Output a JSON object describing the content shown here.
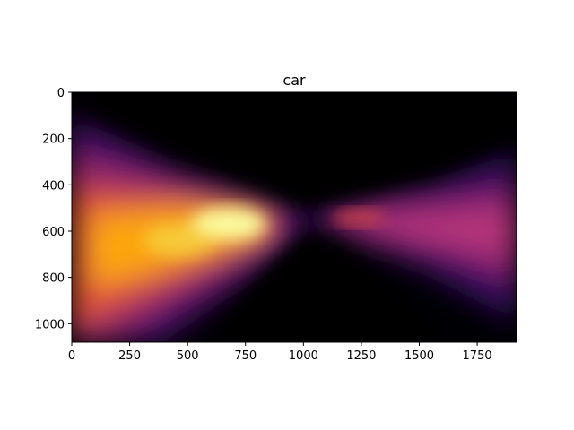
{
  "chart_data": {
    "type": "heatmap",
    "title": "car",
    "colormap": "inferno",
    "xlabel": "",
    "ylabel": "",
    "xlim": [
      0,
      1920
    ],
    "ylim": [
      1080,
      0
    ],
    "y_inverted": true,
    "xticks": [
      0,
      250,
      500,
      750,
      1000,
      1250,
      1500,
      1750
    ],
    "yticks": [
      0,
      200,
      400,
      600,
      800,
      1000
    ],
    "grid": false,
    "description_of_field": "Intensity heatmap shaped like a bow-tie converging near x≈1000, y≈560; brightest region around x≈500–800, y≈550–650; moderate intensity band on the right at x≈1150–1900, y≈480–700; dark elsewhere.",
    "hotspots": [
      {
        "x": 700,
        "y": 570,
        "intensity": 1.0
      },
      {
        "x": 450,
        "y": 640,
        "intensity": 0.85
      },
      {
        "x": 200,
        "y": 700,
        "intensity": 0.7
      },
      {
        "x": 1230,
        "y": 540,
        "intensity": 0.55
      },
      {
        "x": 1550,
        "y": 600,
        "intensity": 0.45
      },
      {
        "x": 1850,
        "y": 650,
        "intensity": 0.35
      }
    ]
  }
}
